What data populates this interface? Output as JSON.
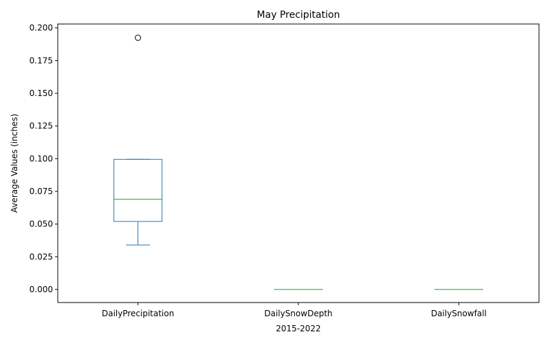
{
  "chart_data": {
    "type": "box",
    "title": "May Precipitation",
    "xlabel": "2015-2022",
    "ylabel": "Average Values (inches)",
    "ylim": [
      -0.01,
      0.203
    ],
    "yticks": [
      0.0,
      0.025,
      0.05,
      0.075,
      0.1,
      0.125,
      0.15,
      0.175,
      0.2
    ],
    "ytick_labels": [
      "0.000",
      "0.025",
      "0.050",
      "0.075",
      "0.100",
      "0.125",
      "0.150",
      "0.175",
      "0.200"
    ],
    "categories": [
      "DailyPrecipitation",
      "DailySnowDepth",
      "DailySnowfall"
    ],
    "boxes": [
      {
        "category": "DailyPrecipitation",
        "whisker_low": 0.034,
        "q1": 0.052,
        "median": 0.069,
        "q3": 0.0995,
        "whisker_high": 0.0995,
        "outliers": [
          0.1925
        ]
      },
      {
        "category": "DailySnowDepth",
        "whisker_low": 0.0,
        "q1": 0.0,
        "median": 0.0,
        "q3": 0.0,
        "whisker_high": 0.0,
        "outliers": []
      },
      {
        "category": "DailySnowfall",
        "whisker_low": 0.0,
        "q1": 0.0,
        "median": 0.0,
        "q3": 0.0,
        "whisker_high": 0.0,
        "outliers": []
      }
    ],
    "grid": false,
    "colors": {
      "box": "#1f77b4",
      "median": "#2ca02c",
      "axis": "#000000"
    }
  }
}
